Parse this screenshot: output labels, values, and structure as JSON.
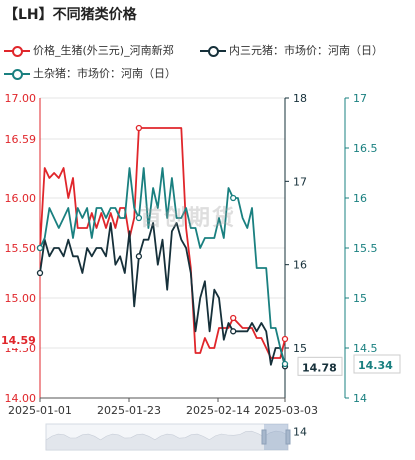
{
  "title": "【LH】不同猪类价格",
  "watermark": "首创期货",
  "colors": {
    "s1": "#e0262b",
    "s2": "#16303a",
    "s3": "#1a8080",
    "grid": "#e6e6e6",
    "axis": "#555555"
  },
  "chart_data": {
    "type": "line",
    "x_tick_labels": [
      "2025-01-01",
      "2025-01-23",
      "2025-02-14",
      "2025-03-03"
    ],
    "y_left": {
      "min": 14.0,
      "max": 17.0,
      "ticks": [
        "17.00",
        "16.59",
        "16.00",
        "15.50",
        "15.00",
        "14.50",
        "14.00"
      ]
    },
    "y_mid": {
      "min": 14.4,
      "max": 18.0,
      "ticks": [
        "18",
        "17",
        "16",
        "15",
        "14"
      ]
    },
    "y_right": {
      "min": 14.0,
      "max": 17.0,
      "ticks": [
        "17",
        "16.5",
        "16",
        "15.5",
        "15",
        "14.5",
        "14"
      ]
    },
    "end_labels": {
      "s1": "14.59",
      "s2": "14.78",
      "s3": "14.34"
    },
    "series": [
      {
        "name": "价格_生猪(外三元)_河南新郑",
        "axis": "left",
        "values": [
          15.5,
          16.3,
          16.2,
          16.25,
          16.2,
          16.3,
          16.0,
          16.2,
          15.7,
          15.7,
          15.7,
          15.85,
          15.7,
          15.85,
          15.7,
          15.85,
          15.7,
          15.9,
          15.9,
          15.6,
          15.8,
          16.7,
          16.7,
          16.7,
          16.7,
          16.7,
          16.7,
          16.7,
          16.7,
          16.7,
          16.7,
          15.7,
          15.3,
          14.45,
          14.45,
          14.6,
          14.5,
          14.5,
          14.7,
          14.7,
          14.7,
          14.8,
          14.75,
          14.7,
          14.7,
          14.7,
          14.6,
          14.6,
          14.5,
          14.4,
          14.4,
          14.4,
          14.59
        ]
      },
      {
        "name": "内三元猪：市场价：河南（日）",
        "axis": "mid",
        "values": [
          15.9,
          16.3,
          16.1,
          16.2,
          16.2,
          16.1,
          16.3,
          16.1,
          16.1,
          15.9,
          16.2,
          16.1,
          16.2,
          16.2,
          16.1,
          16.5,
          16.0,
          16.1,
          15.9,
          16.4,
          15.5,
          16.1,
          16.3,
          16.3,
          16.5,
          16.0,
          16.3,
          15.7,
          16.4,
          16.5,
          16.3,
          16.2,
          15.9,
          15.2,
          15.6,
          15.8,
          15.2,
          15.7,
          15.6,
          15.1,
          15.3,
          15.2,
          15.2,
          15.2,
          15.2,
          15.3,
          15.2,
          15.3,
          15.2,
          14.8,
          15.0,
          15.0,
          14.78
        ]
      },
      {
        "name": "土杂猪：市场价：河南（日）",
        "axis": "right",
        "values": [
          15.5,
          15.6,
          15.9,
          15.8,
          15.7,
          15.8,
          15.9,
          15.6,
          15.9,
          15.8,
          15.9,
          15.6,
          15.9,
          15.9,
          15.8,
          15.9,
          15.9,
          15.8,
          15.8,
          16.3,
          15.9,
          15.8,
          16.3,
          15.7,
          16.1,
          15.9,
          16.3,
          15.8,
          16.2,
          15.8,
          15.8,
          15.9,
          15.7,
          15.7,
          15.5,
          15.6,
          15.6,
          15.6,
          15.8,
          15.6,
          16.1,
          16.0,
          16.0,
          15.8,
          15.7,
          15.9,
          15.3,
          15.3,
          15.3,
          14.7,
          14.7,
          14.5,
          14.34
        ]
      }
    ]
  }
}
